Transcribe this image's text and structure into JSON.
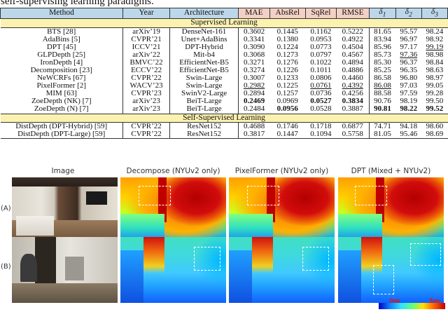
{
  "caption_tail": "self-supervising learning paradigms.",
  "table": {
    "headers": [
      "Method",
      "Year",
      "Architecture",
      "MAE",
      "AbsRel",
      "SqRel",
      "RMSE",
      "δ1",
      "δ2",
      "δ3"
    ],
    "sections": [
      {
        "title": "Supervised Learning",
        "rows": [
          {
            "method": "BTS [28]",
            "year": "arXiv’19",
            "arch": "DenseNet-161",
            "vals": [
              "0.3602",
              "0.1445",
              "0.1162",
              "0.5222",
              "81.65",
              "95.57",
              "98.24"
            ]
          },
          {
            "method": "AdaBins [5]",
            "year": "CVPR’21",
            "arch": "Unet+AdaBins",
            "vals": [
              "0.3341",
              "0.1380",
              "0.0953",
              "0.4922",
              "83.94",
              "96.97",
              "98.92"
            ]
          },
          {
            "method": "DPT [45]",
            "year": "ICCV’21",
            "arch": "DPT-Hybrid",
            "vals": [
              "0.3090",
              "0.1224",
              "0.0773",
              "0.4504",
              "85.96",
              "97.17",
              "99.19"
            ]
          },
          {
            "method": "GLPDepth [25]",
            "year": "arXiv’22",
            "arch": "Mit-b4",
            "vals": [
              "0.3068",
              "0.1273",
              "0.0797",
              "0.4567",
              "85.73",
              "97.36",
              "98.98"
            ]
          },
          {
            "method": "IronDepth [4]",
            "year": "BMVC’22",
            "arch": "EfficientNet-B5",
            "vals": [
              "0.3271",
              "0.1276",
              "0.1022",
              "0.4894",
              "85.30",
              "96.37",
              "98.84"
            ]
          },
          {
            "method": "Decomposition [23]",
            "year": "ECCV’22",
            "arch": "EfficientNet-B5",
            "vals": [
              "0.3274",
              "0.1226",
              "0.1011",
              "0.4886",
              "85.25",
              "96.35",
              "98.63"
            ]
          },
          {
            "method": "NeWCRFs [67]",
            "year": "CVPR’22",
            "arch": "Swin-Large",
            "vals": [
              "0.3007",
              "0.1233",
              "0.0806",
              "0.4460",
              "86.58",
              "96.80",
              "98.97"
            ]
          },
          {
            "method": "PixelFormer [2]",
            "year": "WACV’23",
            "arch": "Swin-Large",
            "vals": [
              "0.2982",
              "0.1225",
              "0.0761",
              "0.4392",
              "86.08",
              "97.03",
              "99.05"
            ]
          },
          {
            "method": "MIM [63]",
            "year": "CVPR’23",
            "arch": "SwinV2-Large",
            "vals": [
              "0.2894",
              "0.1257",
              "0.0736",
              "0.4256",
              "88.58",
              "97.59",
              "99.28"
            ]
          },
          {
            "method": "ZoeDepth (NK) [7]",
            "year": "arXiv’23",
            "arch": "BeiT-Large",
            "vals": [
              "0.2469",
              "0.0969",
              "0.0527",
              "0.3834",
              "90.76",
              "98.19",
              "99.50"
            ]
          },
          {
            "method": "ZoeDepth (N) [7]",
            "year": "arXiv’23",
            "arch": "BeiT-Large",
            "vals": [
              "0.2484",
              "0.0956",
              "0.0528",
              "0.3887",
              "90.81",
              "98.22",
              "99.52"
            ]
          }
        ]
      },
      {
        "title": "Self-Supervised Learning",
        "rows": [
          {
            "method": "DistDepth (DPT-Hybrid) [59]",
            "year": "CVPR’22",
            "arch": "ResNet152",
            "vals": [
              "0.4688",
              "0.1746",
              "0.1718",
              "0.6877",
              "74.71",
              "94.18",
              "98.60"
            ]
          },
          {
            "method": "DistDepth (DPT-Large) [59]",
            "year": "CVPR’22",
            "arch": "ResNet152",
            "vals": [
              "0.3817",
              "0.1447",
              "0.1094",
              "0.5758",
              "81.05",
              "95.46",
              "98.69"
            ]
          }
        ]
      }
    ]
  },
  "figure": {
    "col_headers": [
      "Image",
      "Decompose (NYUv2 only)",
      "PixelFormer (NYUv2 only)",
      "DPT (Mixed + NYUv2)"
    ],
    "row_labels": [
      "(A)",
      "(B)"
    ],
    "colorbar_min": "0m",
    "colorbar_max": "5m"
  }
}
